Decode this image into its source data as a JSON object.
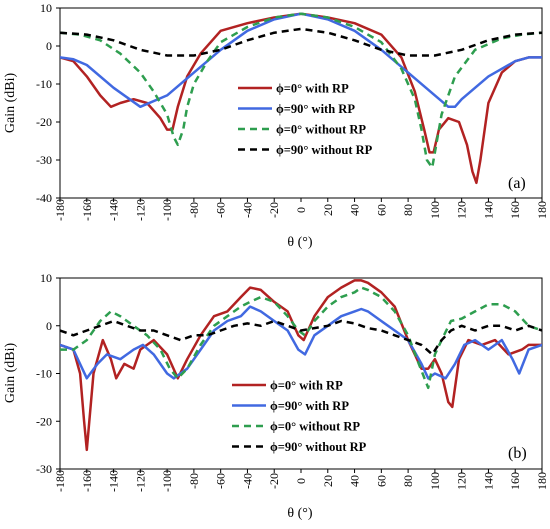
{
  "chart_data": [
    {
      "type": "line",
      "panel_label": "(a)",
      "xlabel": "θ (°)",
      "ylabel": "Gain (dBi)",
      "xlim": [
        -180,
        180
      ],
      "ylim": [
        -40,
        10
      ],
      "xticks": [
        "-180",
        "-160",
        "-140",
        "-120",
        "-100",
        "-80",
        "-60",
        "-40",
        "-20",
        "0",
        "20",
        "40",
        "60",
        "80",
        "100",
        "120",
        "140",
        "160",
        "180"
      ],
      "yticks": [
        "10",
        "0",
        "-10",
        "-20",
        "-30",
        "-40"
      ],
      "legend_position": "center-right",
      "series": [
        {
          "name": "ϕ=0° with RP",
          "color": "#b22222",
          "dash": "solid",
          "x": [
            -180,
            -170,
            -160,
            -150,
            -142,
            -135,
            -125,
            -115,
            -105,
            -100,
            -96,
            -92,
            -85,
            -75,
            -60,
            -40,
            -20,
            0,
            20,
            40,
            60,
            75,
            85,
            92,
            96,
            99,
            103,
            110,
            118,
            124,
            128,
            131,
            134,
            140,
            150,
            160,
            170,
            180
          ],
          "y": [
            -3,
            -4,
            -8,
            -13,
            -16,
            -15,
            -14,
            -15,
            -19,
            -22,
            -22,
            -16,
            -8,
            -2,
            4,
            6,
            7.5,
            8.5,
            7.5,
            6,
            3,
            -3,
            -12,
            -22,
            -28,
            -28,
            -22,
            -19,
            -20,
            -26,
            -33,
            -36,
            -30,
            -15,
            -7,
            -4,
            -3,
            -3
          ]
        },
        {
          "name": "ϕ=90° with RP",
          "color": "#4169e1",
          "dash": "solid",
          "x": [
            -180,
            -170,
            -160,
            -140,
            -120,
            -100,
            -80,
            -60,
            -40,
            -20,
            0,
            20,
            40,
            60,
            80,
            100,
            110,
            115,
            120,
            140,
            160,
            170,
            180
          ],
          "y": [
            -3,
            -3.5,
            -5,
            -11,
            -16,
            -13,
            -7,
            -1,
            4,
            7,
            8.5,
            7,
            4,
            -1,
            -7,
            -13,
            -16,
            -16,
            -14,
            -8,
            -4,
            -3,
            -3
          ]
        },
        {
          "name": "ϕ=0° without RP",
          "color": "#2e9e4f",
          "dash": "dashed",
          "x": [
            -180,
            -165,
            -150,
            -135,
            -120,
            -110,
            -100,
            -95,
            -92,
            -88,
            -85,
            -80,
            -70,
            -60,
            -40,
            -20,
            0,
            20,
            40,
            60,
            75,
            85,
            90,
            94,
            98,
            100,
            105,
            115,
            130,
            150,
            165,
            180
          ],
          "y": [
            3.5,
            3,
            1.5,
            -2,
            -7,
            -12,
            -18,
            -24,
            -26,
            -22,
            -16,
            -10,
            -4,
            1,
            5,
            7.5,
            8.5,
            7.5,
            5,
            1,
            -6,
            -14,
            -22,
            -30,
            -32,
            -28,
            -18,
            -8,
            -1,
            2,
            3,
            3.5
          ]
        },
        {
          "name": "ϕ=90° without RP",
          "color": "#000000",
          "dash": "dashed",
          "x": [
            -180,
            -160,
            -140,
            -120,
            -100,
            -80,
            -60,
            -40,
            -20,
            0,
            20,
            40,
            60,
            80,
            100,
            120,
            140,
            160,
            180
          ],
          "y": [
            3.5,
            3,
            1.5,
            -1,
            -2.5,
            -2.5,
            -1,
            1.5,
            3.5,
            4.5,
            3.5,
            1.5,
            -1,
            -2.5,
            -2.5,
            -1,
            1.5,
            3,
            3.5
          ]
        }
      ]
    },
    {
      "type": "line",
      "panel_label": "(b)",
      "xlabel": "θ (°)",
      "ylabel": "Gain (dBi)",
      "xlim": [
        -180,
        180
      ],
      "ylim": [
        -30,
        10
      ],
      "xticks": [
        "-180",
        "-160",
        "-140",
        "-120",
        "-100",
        "-80",
        "-60",
        "-40",
        "-20",
        "0",
        "20",
        "40",
        "60",
        "80",
        "100",
        "120",
        "140",
        "160",
        "180"
      ],
      "yticks": [
        "10",
        "0",
        "-10",
        "-20",
        "-30"
      ],
      "legend_position": "bottom-left",
      "series": [
        {
          "name": "ϕ=0° with RP",
          "color": "#b22222",
          "dash": "solid",
          "x": [
            -180,
            -170,
            -165,
            -162,
            -160,
            -155,
            -148,
            -142,
            -138,
            -132,
            -125,
            -120,
            -110,
            -100,
            -92,
            -85,
            -75,
            -65,
            -55,
            -45,
            -38,
            -30,
            -20,
            -10,
            -2,
            2,
            10,
            20,
            30,
            40,
            45,
            50,
            60,
            70,
            80,
            90,
            95,
            100,
            105,
            110,
            113,
            118,
            125,
            135,
            145,
            155,
            165,
            170,
            180
          ],
          "y": [
            -4,
            -5,
            -10,
            -20,
            -26,
            -10,
            -3,
            -7,
            -11,
            -8,
            -9,
            -5,
            -3,
            -6,
            -11,
            -7,
            -2,
            2,
            3,
            6,
            8,
            7.5,
            5,
            3,
            -2,
            -3,
            2,
            6,
            8,
            9.5,
            9.5,
            9,
            7,
            4,
            -3,
            -9,
            -9,
            -7,
            -10,
            -16,
            -17,
            -7,
            -3,
            -4,
            -3,
            -6,
            -5,
            -4,
            -4
          ]
        },
        {
          "name": "ϕ=90° with RP",
          "color": "#4169e1",
          "dash": "solid",
          "x": [
            -180,
            -170,
            -160,
            -152,
            -145,
            -135,
            -125,
            -118,
            -110,
            -100,
            -95,
            -85,
            -75,
            -65,
            -55,
            -45,
            -38,
            -30,
            -20,
            -10,
            -2,
            3,
            10,
            20,
            30,
            40,
            45,
            50,
            60,
            70,
            80,
            90,
            95,
            100,
            108,
            115,
            122,
            130,
            140,
            150,
            158,
            163,
            170,
            180
          ],
          "y": [
            -4,
            -5,
            -11,
            -8,
            -6,
            -7,
            -5,
            -4,
            -6,
            -10,
            -11,
            -9,
            -5,
            -1,
            1,
            2,
            4,
            3,
            1,
            -1,
            -5,
            -6,
            -2,
            0,
            2,
            3,
            3.5,
            3,
            1,
            -1,
            -3,
            -8,
            -11,
            -10,
            -11,
            -8,
            -4,
            -3,
            -5,
            -3,
            -7,
            -10,
            -5,
            -4
          ]
        },
        {
          "name": "ϕ=0° without RP",
          "color": "#2e9e4f",
          "dash": "dashed",
          "x": [
            -180,
            -170,
            -160,
            -150,
            -142,
            -135,
            -125,
            -115,
            -105,
            -98,
            -92,
            -85,
            -75,
            -65,
            -55,
            -45,
            -38,
            -30,
            -20,
            -10,
            -2,
            3,
            10,
            20,
            30,
            40,
            45,
            50,
            60,
            70,
            80,
            88,
            95,
            100,
            105,
            112,
            120,
            130,
            140,
            150,
            160,
            170,
            180
          ],
          "y": [
            -5,
            -5,
            -3,
            1,
            3,
            2,
            0,
            -2,
            -5,
            -9,
            -11,
            -9,
            -4,
            0,
            2,
            4,
            5,
            6,
            5,
            2,
            -1,
            -2,
            1,
            4,
            6,
            7,
            8,
            7.5,
            6,
            3,
            -2,
            -8,
            -13,
            -6,
            -3,
            1,
            1.5,
            3,
            4.5,
            4.5,
            3,
            0,
            -1
          ]
        },
        {
          "name": "ϕ=90° without RP",
          "color": "#000000",
          "dash": "dashed",
          "x": [
            -180,
            -170,
            -160,
            -150,
            -140,
            -130,
            -120,
            -110,
            -100,
            -90,
            -80,
            -70,
            -60,
            -50,
            -40,
            -30,
            -20,
            -10,
            0,
            10,
            20,
            30,
            40,
            50,
            60,
            70,
            80,
            90,
            98,
            105,
            112,
            120,
            130,
            140,
            150,
            160,
            170,
            180
          ],
          "y": [
            -1,
            -2,
            -1,
            0,
            1,
            0,
            -1,
            -1,
            -2,
            -3,
            -2,
            -2,
            -1,
            0,
            0.5,
            0,
            1,
            0,
            -1,
            -0.5,
            0,
            1,
            0.5,
            -0.5,
            -1,
            -2,
            -3,
            -4,
            -6,
            -3,
            -1,
            0,
            -1,
            0,
            0,
            -1,
            0,
            -1
          ]
        }
      ]
    }
  ]
}
